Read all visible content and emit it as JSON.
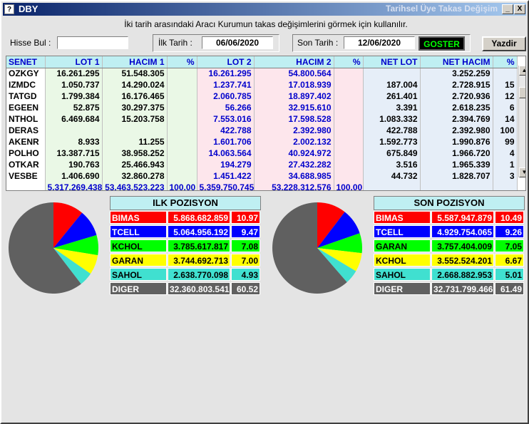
{
  "window": {
    "title": "DBY",
    "right_title": "Tarihsel Üye Takas Değişim",
    "icon": "question-icon",
    "min_label": "_",
    "close_label": "X"
  },
  "info_text": "İki tarih arasındaki Aracı Kurumun takas değişimlerini görmek için kullanılır.",
  "toolbar": {
    "hisse_label": "Hisse Bul :",
    "hisse_value": "",
    "ilk_label": "İlk Tarih :",
    "ilk_value": "06/06/2020",
    "son_label": "Son Tarih :",
    "son_value": "12/06/2020",
    "goster_label": "GOSTER",
    "yazdir_label": "Yazdir"
  },
  "grid": {
    "columns": [
      "SENET",
      "LOT 1",
      "HACIM 1",
      "%",
      "LOT 2",
      "HACIM 2",
      "%",
      "NET LOT",
      "NET HACIM",
      "%"
    ],
    "rows": [
      [
        "OZKGY",
        "16.261.295",
        "51.548.305",
        "",
        "16.261.295",
        "54.800.564",
        "",
        "",
        "3.252.259",
        ""
      ],
      [
        "IZMDC",
        "1.050.737",
        "14.290.024",
        "",
        "1.237.741",
        "17.018.939",
        "",
        "187.004",
        "2.728.915",
        "15"
      ],
      [
        "TATGD",
        "1.799.384",
        "16.176.465",
        "",
        "2.060.785",
        "18.897.402",
        "",
        "261.401",
        "2.720.936",
        "12"
      ],
      [
        "EGEEN",
        "52.875",
        "30.297.375",
        "",
        "56.266",
        "32.915.610",
        "",
        "3.391",
        "2.618.235",
        "6"
      ],
      [
        "NTHOL",
        "6.469.684",
        "15.203.758",
        "",
        "7.553.016",
        "17.598.528",
        "",
        "1.083.332",
        "2.394.769",
        "14"
      ],
      [
        "DERAS",
        "",
        "",
        "",
        "422.788",
        "2.392.980",
        "",
        "422.788",
        "2.392.980",
        "100"
      ],
      [
        "AKENR",
        "8.933",
        "11.255",
        "",
        "1.601.706",
        "2.002.132",
        "",
        "1.592.773",
        "1.990.876",
        "99"
      ],
      [
        "POLHO",
        "13.387.715",
        "38.958.252",
        "",
        "14.063.564",
        "40.924.972",
        "",
        "675.849",
        "1.966.720",
        "4"
      ],
      [
        "OTKAR",
        "190.763",
        "25.466.943",
        "",
        "194.279",
        "27.432.282",
        "",
        "3.516",
        "1.965.339",
        "1"
      ],
      [
        "VESBE",
        "1.406.690",
        "32.860.278",
        "",
        "1.451.422",
        "34.688.985",
        "",
        "44.732",
        "1.828.707",
        "3"
      ]
    ],
    "totals": [
      "",
      "5.317.269.438",
      "53.463.523.223",
      "100,00",
      "5.359.750.745",
      "53.228.312.576",
      "100,00",
      "",
      "",
      ""
    ]
  },
  "ilk_pozisyon": {
    "title": "ILK POZISYON",
    "rows": [
      {
        "name": "BIMAS",
        "value": "5.868.682.859",
        "pct": "10.97",
        "bg": "#ff0000",
        "fg": "#ffffff"
      },
      {
        "name": "TCELL",
        "value": "5.064.956.192",
        "pct": "9.47",
        "bg": "#0000ff",
        "fg": "#ffffff"
      },
      {
        "name": "KCHOL",
        "value": "3.785.617.817",
        "pct": "7.08",
        "bg": "#00ff00",
        "fg": "#000000"
      },
      {
        "name": "GARAN",
        "value": "3.744.692.713",
        "pct": "7.00",
        "bg": "#ffff00",
        "fg": "#000000"
      },
      {
        "name": "SAHOL",
        "value": "2.638.770.098",
        "pct": "4.93",
        "bg": "#40e0d0",
        "fg": "#000000"
      },
      {
        "name": "DIGER",
        "value": "32.360.803.541",
        "pct": "60.52",
        "bg": "#606060",
        "fg": "#ffffff"
      }
    ]
  },
  "son_pozisyon": {
    "title": "SON POZISYON",
    "rows": [
      {
        "name": "BIMAS",
        "value": "5.587.947.879",
        "pct": "10.49",
        "bg": "#ff0000",
        "fg": "#ffffff"
      },
      {
        "name": "TCELL",
        "value": "4.929.754.065",
        "pct": "9.26",
        "bg": "#0000ff",
        "fg": "#ffffff"
      },
      {
        "name": "GARAN",
        "value": "3.757.404.009",
        "pct": "7.05",
        "bg": "#00ff00",
        "fg": "#000000"
      },
      {
        "name": "KCHOL",
        "value": "3.552.524.201",
        "pct": "6.67",
        "bg": "#ffff00",
        "fg": "#000000"
      },
      {
        "name": "SAHOL",
        "value": "2.668.882.953",
        "pct": "5.01",
        "bg": "#40e0d0",
        "fg": "#000000"
      },
      {
        "name": "DIGER",
        "value": "32.731.799.466",
        "pct": "61.49",
        "bg": "#606060",
        "fg": "#ffffff"
      }
    ]
  },
  "chart_data": [
    {
      "type": "pie",
      "categories": [
        "BIMAS",
        "TCELL",
        "KCHOL",
        "GARAN",
        "SAHOL",
        "DIGER"
      ],
      "values": [
        10.97,
        9.47,
        7.08,
        7.0,
        4.93,
        60.52
      ],
      "colors": [
        "#ff0000",
        "#0000ff",
        "#00ff00",
        "#ffff00",
        "#40e0d0",
        "#606060"
      ]
    },
    {
      "type": "pie",
      "categories": [
        "BIMAS",
        "TCELL",
        "GARAN",
        "KCHOL",
        "SAHOL",
        "DIGER"
      ],
      "values": [
        10.49,
        9.26,
        7.05,
        6.67,
        5.01,
        61.49
      ],
      "colors": [
        "#ff0000",
        "#0000ff",
        "#00ff00",
        "#ffff00",
        "#40e0d0",
        "#606060"
      ]
    }
  ]
}
